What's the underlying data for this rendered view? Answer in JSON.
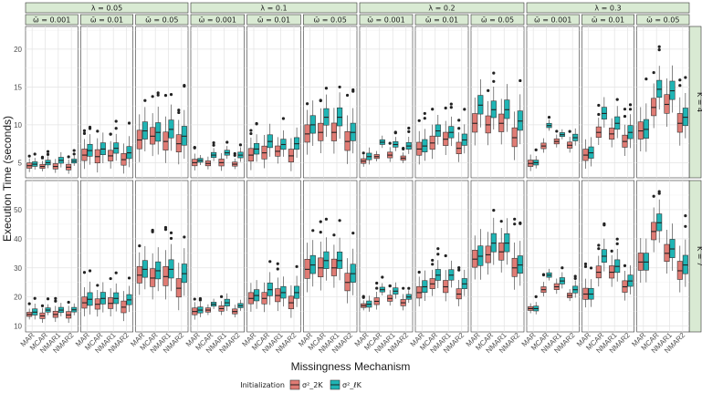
{
  "chart_data": {
    "type": "boxplot",
    "title": "",
    "xlabel": "Missingness Mechanism",
    "ylabel": "Execution Time (seconds)",
    "categories": [
      "MAR",
      "MCAR",
      "NMAR1",
      "NMAR2"
    ],
    "lambda_strips": [
      "λ = 0.05",
      "λ = 0.1",
      "λ = 0.2",
      "λ = 0.3"
    ],
    "omega_strips": [
      "ω̄ = 0.001",
      "ω̄ = 0.01",
      "ω̄ = 0.05"
    ],
    "k_strips": [
      "K = 4",
      "K = 7"
    ],
    "legend": {
      "title": "Initialization",
      "items": [
        {
          "name": "σ²_2K",
          "color": "#e07b74"
        },
        {
          "name": "σ²_ℓK",
          "color": "#1fb5b5"
        }
      ]
    },
    "rows": [
      {
        "k": "K = 4",
        "ylim": [
          3,
          23
        ],
        "yticks": [
          5,
          10,
          15,
          20
        ]
      },
      {
        "k": "K = 7",
        "ylim": [
          8,
          60
        ],
        "yticks": [
          10,
          20,
          30,
          40,
          50
        ]
      }
    ],
    "series_medians": {
      "K = 4": {
        "λ = 0.05": {
          "ω̄ = 0.001": [
            [
              4.6,
              4.8
            ],
            [
              4.5,
              5.0
            ],
            [
              4.5,
              5.3
            ],
            [
              4.4,
              5.2
            ]
          ],
          "ω̄ = 0.01": [
            [
              6.0,
              6.6
            ],
            [
              5.8,
              6.8
            ],
            [
              5.9,
              6.9
            ],
            [
              5.4,
              6.3
            ]
          ],
          "ω̄ = 0.05": [
            [
              8.0,
              9.2
            ],
            [
              8.5,
              9.0
            ],
            [
              7.8,
              9.4
            ],
            [
              7.5,
              8.5
            ]
          ]
        },
        "λ = 0.1": {
          "ω̄ = 0.001": [
            [
              5.0,
              5.3
            ],
            [
              4.9,
              6.0
            ],
            [
              5.0,
              6.3
            ],
            [
              4.8,
              6.0
            ]
          ],
          "ω̄ = 0.01": [
            [
              6.0,
              6.8
            ],
            [
              6.3,
              7.8
            ],
            [
              6.5,
              7.4
            ],
            [
              5.9,
              7.5
            ]
          ],
          "ω̄ = 0.05": [
            [
              8.8,
              10.0
            ],
            [
              9.0,
              11.0
            ],
            [
              9.0,
              11.0
            ],
            [
              7.8,
              9.0
            ]
          ]
        },
        "λ = 0.2": {
          "ω̄ = 0.001": [
            [
              5.2,
              5.8
            ],
            [
              5.8,
              7.7
            ],
            [
              6.0,
              7.4
            ],
            [
              5.6,
              7.2
            ]
          ],
          "ω̄ = 0.01": [
            [
              6.8,
              7.2
            ],
            [
              7.6,
              9.2
            ],
            [
              8.1,
              9.0
            ],
            [
              6.9,
              8.0
            ]
          ],
          "ω̄ = 0.05": [
            [
              10.2,
              12.6
            ],
            [
              10.0,
              12.0
            ],
            [
              10.2,
              12.0
            ],
            [
              8.3,
              10.5
            ]
          ]
        },
        "λ = 0.3": {
          "ω̄ = 0.001": [
            [
              4.9,
              5.0
            ],
            [
              7.2,
              9.9
            ],
            [
              7.8,
              8.7
            ],
            [
              7.3,
              8.3
            ]
          ],
          "ω̄ = 0.01": [
            [
              6.0,
              6.3
            ],
            [
              9.0,
              11.5
            ],
            [
              8.8,
              10.2
            ],
            [
              7.8,
              9.0
            ]
          ],
          "ω̄ = 0.05": [
            [
              9.2,
              9.4
            ],
            [
              12.3,
              14.7
            ],
            [
              12.7,
              14.5
            ],
            [
              10.2,
              11.0
            ]
          ]
        }
      },
      "K = 7": {
        "λ = 0.05": {
          "ω̄ = 0.001": [
            [
              14.0,
              14.8
            ],
            [
              13.5,
              15.5
            ],
            [
              14.0,
              15.5
            ],
            [
              13.8,
              15.6
            ]
          ],
          "ω̄ = 0.01": [
            [
              18.0,
              19.2
            ],
            [
              17.5,
              19.5
            ],
            [
              17.8,
              19.5
            ],
            [
              16.5,
              19.0
            ]
          ],
          "ω̄ = 0.05": [
            [
              27.5,
              29.5
            ],
            [
              26.5,
              29.0
            ],
            [
              27.0,
              29.5
            ],
            [
              23.0,
              28.0
            ]
          ]
        },
        "λ = 0.1": {
          "ω̄ = 0.001": [
            [
              15.0,
              15.5
            ],
            [
              15.5,
              17.5
            ],
            [
              16.0,
              18.0
            ],
            [
              15.0,
              17.0
            ]
          ],
          "ω̄ = 0.01": [
            [
              19.5,
              20.5
            ],
            [
              19.5,
              22.5
            ],
            [
              20.5,
              21.5
            ],
            [
              18.0,
              21.5
            ]
          ],
          "ω̄ = 0.05": [
            [
              29.5,
              31.0
            ],
            [
              30.0,
              32.5
            ],
            [
              30.0,
              32.5
            ],
            [
              25.0,
              28.0
            ]
          ]
        },
        "λ = 0.2": {
          "ω̄ = 0.001": [
            [
              17.0,
              17.5
            ],
            [
              18.5,
              22.5
            ],
            [
              19.5,
              22.0
            ],
            [
              18.0,
              20.0
            ]
          ],
          "ω̄ = 0.01": [
            [
              21.5,
              23.5
            ],
            [
              24.5,
              27.5
            ],
            [
              23.5,
              27.5
            ],
            [
              21.0,
              24.5
            ]
          ],
          "ω̄ = 0.05": [
            [
              33.0,
              34.0
            ],
            [
              34.5,
              38.5
            ],
            [
              35.5,
              38.5
            ],
            [
              30.0,
              31.0
            ]
          ]
        },
        "λ = 0.3": {
          "ω̄ = 0.001": [
            [
              16.0,
              16.0
            ],
            [
              22.5,
              27.5
            ],
            [
              23.5,
              25.5
            ],
            [
              20.5,
              22.5
            ]
          ],
          "ω̄ = 0.01": [
            [
              21.0,
              21.0
            ],
            [
              28.5,
              34.0
            ],
            [
              28.5,
              30.5
            ],
            [
              23.5,
              25.5
            ]
          ],
          "ω̄ = 0.05": [
            [
              32.0,
              32.0
            ],
            [
              42.5,
              45.5
            ],
            [
              35.0,
              36.5
            ],
            [
              29.0,
              31.0
            ]
          ]
        }
      }
    }
  }
}
